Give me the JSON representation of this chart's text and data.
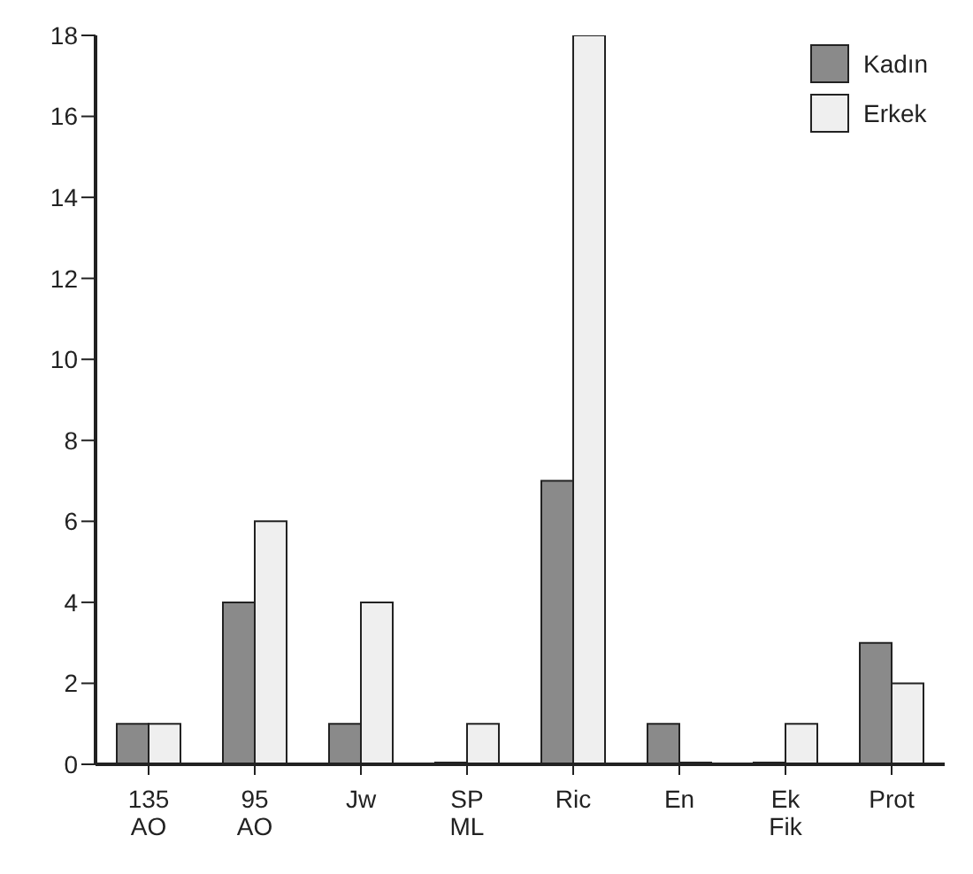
{
  "chart_data": {
    "type": "bar",
    "categories": [
      "135 AO",
      "95 AO",
      "Jw",
      "SP ML",
      "Ric",
      "En",
      "Ek Fik",
      "Prot"
    ],
    "series": [
      {
        "name": "Kadın",
        "color": "#8a8a8a",
        "values": [
          1,
          4,
          1,
          0,
          7,
          1,
          0,
          3
        ]
      },
      {
        "name": "Erkek",
        "color": "#efefef",
        "values": [
          1,
          6,
          4,
          1,
          18,
          0,
          1,
          2
        ]
      }
    ],
    "ylim": [
      0,
      18
    ],
    "yticks": [
      0,
      2,
      4,
      6,
      8,
      10,
      12,
      14,
      16,
      18
    ],
    "legend": "top right"
  }
}
